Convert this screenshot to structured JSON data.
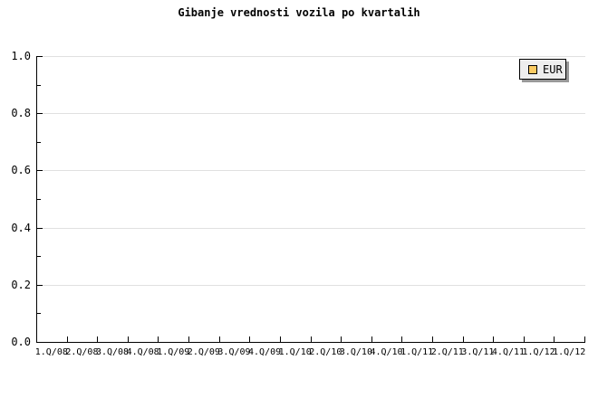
{
  "page": {
    "background": "#ffffff"
  },
  "chart_data": {
    "type": "line",
    "title": "Gibanje vrednosti vozila po kvartalih",
    "xlabel": "",
    "ylabel": "",
    "categories": [
      "1.Q/08",
      "2.Q/08",
      "3.Q/08",
      "4.Q/08",
      "1.Q/09",
      "2.Q/09",
      "3.Q/09",
      "4.Q/09",
      "1.Q/10",
      "2.Q/10",
      "3.Q/10",
      "4.Q/10",
      "1.Q/11",
      "2.Q/11",
      "3.Q/11",
      "4.Q/11",
      "1.Q/12",
      "1.Q/12"
    ],
    "series": [
      {
        "name": "EUR",
        "color": "#fbcb63",
        "values": []
      }
    ],
    "ylim": [
      0.0,
      1.0
    ],
    "y_axis": {
      "major": [
        {
          "value": 1.0,
          "label": "1.0"
        },
        {
          "value": 0.8,
          "label": "0.8"
        },
        {
          "value": 0.6,
          "label": "0.6"
        },
        {
          "value": 0.4,
          "label": "0.4"
        },
        {
          "value": 0.2,
          "label": "0.2"
        },
        {
          "value": 0.0,
          "label": "0.0"
        }
      ],
      "minor": [
        0.9,
        0.7,
        0.5,
        0.3,
        0.1
      ]
    },
    "grid": "horizontal-major",
    "legend": {
      "position": "top-right",
      "entries": [
        {
          "label": "EUR",
          "swatch_color": "#fbcb63"
        }
      ]
    },
    "colors": {
      "axis": "#000000",
      "gridline": "#e0e0e0",
      "tick": "#000000",
      "title": "#000000",
      "legend_bg": "#eeeeee",
      "legend_border": "#000000",
      "legend_shadow": "#999999",
      "swatch_border": "#000000"
    }
  }
}
